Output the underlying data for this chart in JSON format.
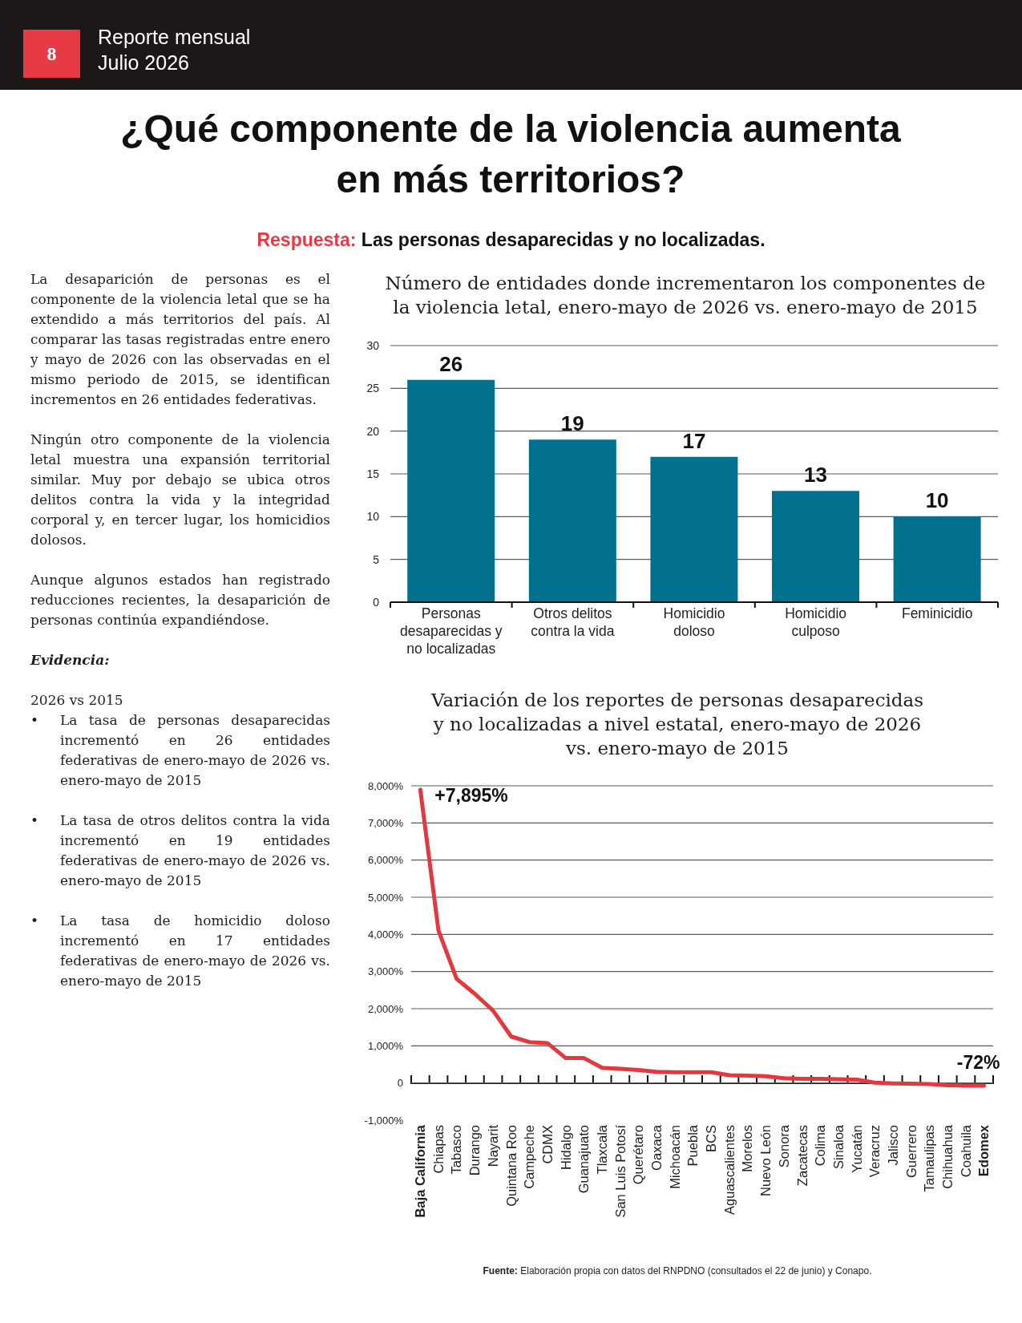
{
  "chart_data": [
    {
      "type": "other",
      "title": "¿Qué componente de la violencia aumenta en más territorios?",
      "subtitle": "Respuesta: Las personas desaparecidas y no localizadas.",
      "annotations": [
        "8",
        "Reporte mensual",
        "Julio 2026"
      ]
    },
    {
      "type": "other",
      "annotations": [
        "La desaparición de personas es el componente de la violencia letal que se ha extendido a más territorios del país. Al comparar las tasas registradas entre enero y mayo de 2026 con las observadas en el mismo periodo de 2015, se identifican incrementos en 26 entidades federativas.",
        "Ningún otro componente de la violencia letal muestra una expansión territorial similar. Muy por debajo se ubica otros delitos contra la vida y la integridad corporal y, en tercer lugar, los homicidios dolosos.",
        "Aunque algunos estados han registrado reducciones recientes, la desaparición de personas continúa expandiéndose.",
        "Evidencia:",
        "2026 vs 2015",
        "• La tasa de personas desaparecidas incrementó en 26 entidades federativas de enero-mayo de 2026 vs. enero-mayo de 2015",
        "• La tasa de otros delitos contra la vida incrementó en 19 entidades federativas de enero-mayo de 2026 vs. enero-mayo de 2015",
        "• La tasa de homicidio doloso incrementó en 17 entidades federativas de enero-mayo de 2026 vs. enero-mayo de 2015"
      ]
    },
    {
      "type": "bar",
      "title": "Número de entidades donde incrementaron los componentes de la violencia letal, enero-mayo de 2026 vs. enero-mayo de 2015",
      "categories": [
        "Personas desaparecidas y no localizadas",
        "Otros delitos contra la vida",
        "Homicidio doloso",
        "Homicidio culposo",
        "Feminicidio"
      ],
      "values": [
        26,
        19,
        17,
        13,
        10
      ],
      "color": "#00708f",
      "data_labels": true,
      "ylim": [
        0,
        30
      ],
      "yticks": [
        0,
        5,
        10,
        15,
        20,
        25,
        30
      ],
      "grid": "y"
    },
    {
      "type": "line",
      "title": "Variación de los reportes de personas desaparecidas y no localizadas a nivel estatal, enero-mayo de 2026 vs. enero-mayo de 2015",
      "categories": [
        "Baja California",
        "Chiapas",
        "Tabasco",
        "Durango",
        "Nayarit",
        "Quintana Roo",
        "Campeche",
        "CDMX",
        "Hidalgo",
        "Guanajuato",
        "Tlaxcala",
        "San Luis Potosí",
        "Querétaro",
        "Oaxaca",
        "Michoacán",
        "Puebla",
        "BCS",
        "Aguascalientes",
        "Morelos",
        "Nuevo León",
        "Sonora",
        "Zacatecas",
        "Colima",
        "Sinaloa",
        "Yucatán",
        "Veracruz",
        "Jalisco",
        "Guerrero",
        "Tamaulipas",
        "Chihuahua",
        "Coahuila",
        "Edomex"
      ],
      "values": [
        7895,
        4100,
        2800,
        2400,
        1950,
        1250,
        1100,
        1070,
        670,
        670,
        410,
        380,
        350,
        300,
        290,
        290,
        290,
        210,
        200,
        180,
        130,
        110,
        110,
        100,
        90,
        10,
        -10,
        -20,
        -30,
        -60,
        -70,
        -72
      ],
      "color": "#e2393f",
      "value_labels": [
        "+7,895%",
        null,
        null,
        null,
        null,
        null,
        null,
        null,
        null,
        null,
        null,
        null,
        null,
        null,
        null,
        null,
        null,
        null,
        null,
        null,
        null,
        null,
        null,
        null,
        null,
        null,
        null,
        null,
        null,
        null,
        null,
        "-72%"
      ],
      "ylim": [
        -1000,
        8000
      ],
      "yticks": [
        {
          "value": -1000,
          "label": "-1,000%"
        },
        0,
        {
          "value": 1000,
          "label": "1,000%"
        },
        {
          "value": 2000,
          "label": "2,000%"
        },
        {
          "value": 3000,
          "label": "3,000%"
        },
        {
          "value": 4000,
          "label": "4,000%"
        },
        {
          "value": 5000,
          "label": "5,000%"
        },
        {
          "value": 6000,
          "label": "6,000%"
        },
        {
          "value": 7000,
          "label": "7,000%"
        },
        {
          "value": 8000,
          "label": "8,000%"
        }
      ],
      "grid": "y",
      "annotations": [
        "Fuente: Elaboración propia con datos del RNPDNO (consultados el 22 de junio) y Conapo."
      ]
    }
  ]
}
